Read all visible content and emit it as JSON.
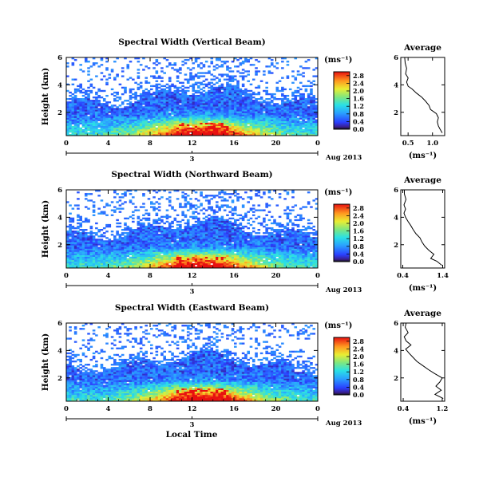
{
  "figure": {
    "xlabel": "Local Time",
    "time_ticks": [
      "0",
      "4",
      "8",
      "12",
      "16",
      "20",
      "0"
    ],
    "day_label": "3",
    "date_label": "Aug 2013",
    "height_ticks": [
      "2",
      "4",
      "6"
    ],
    "ylabel": "Height (km)",
    "unit": "(ms⁻¹)"
  },
  "chart_data": [
    {
      "type": "heatmap",
      "title": "Spectral Width (Vertical Beam)",
      "xlim": [
        0,
        24
      ],
      "ylim": [
        0.3,
        6
      ],
      "colorbar_ticks": [
        "0.0",
        "0.4",
        "0.8",
        "1.2",
        "1.6",
        "2.0",
        "2.4",
        "2.8"
      ],
      "colorbar_range": [
        0,
        3
      ],
      "average_profile": {
        "title": "Average",
        "xlabel": "(ms⁻¹)",
        "xlim": [
          0.35,
          1.25
        ],
        "xticks": [
          "0.5",
          "1.0"
        ],
        "height": [
          0.5,
          0.8,
          1.0,
          1.3,
          1.6,
          1.9,
          2.2,
          2.5,
          2.8,
          3.1,
          3.4,
          3.7,
          3.9,
          4.2,
          4.5,
          4.8,
          5.2,
          5.6,
          6.0
        ],
        "value": [
          1.2,
          1.15,
          1.12,
          1.1,
          1.12,
          1.08,
          0.96,
          0.93,
          0.86,
          0.78,
          0.67,
          0.58,
          0.5,
          0.47,
          0.5,
          0.45,
          0.47,
          0.44,
          0.43
        ]
      }
    },
    {
      "type": "heatmap",
      "title": "Spectral Width (Northward Beam)",
      "xlim": [
        0,
        24
      ],
      "ylim": [
        0.3,
        6
      ],
      "colorbar_ticks": [
        "0.0",
        "0.4",
        "0.8",
        "1.2",
        "1.6",
        "2.0",
        "2.4",
        "2.8"
      ],
      "colorbar_range": [
        0,
        3
      ],
      "average_profile": {
        "title": "Average",
        "xlabel": "(ms⁻¹)",
        "xlim": [
          0.35,
          1.45
        ],
        "xticks": [
          "0.4",
          "1.4"
        ],
        "height": [
          0.5,
          0.8,
          1.0,
          1.3,
          1.6,
          1.9,
          2.2,
          2.5,
          2.8,
          3.1,
          3.4,
          3.7,
          4.0,
          4.3,
          4.6,
          4.9,
          5.3,
          5.7,
          6.0
        ],
        "value": [
          1.38,
          1.25,
          1.1,
          1.18,
          1.05,
          0.95,
          0.88,
          0.83,
          0.73,
          0.66,
          0.6,
          0.53,
          0.47,
          0.43,
          0.47,
          0.43,
          0.48,
          0.44,
          0.44
        ]
      }
    },
    {
      "type": "heatmap",
      "title": "Spectral Width (Eastward Beam)",
      "xlim": [
        0,
        24
      ],
      "ylim": [
        0.3,
        6
      ],
      "colorbar_ticks": [
        "0.0",
        "0.4",
        "0.8",
        "1.2",
        "1.6",
        "2.0",
        "2.4",
        "2.8"
      ],
      "colorbar_range": [
        0,
        3
      ],
      "average_profile": {
        "title": "Average",
        "xlabel": "(ms⁻¹)",
        "xlim": [
          0.35,
          1.25
        ],
        "xticks": [
          "0.4",
          "1.2"
        ],
        "height": [
          0.5,
          0.8,
          1.1,
          1.4,
          1.7,
          2.0,
          2.3,
          2.6,
          2.9,
          3.2,
          3.5,
          3.8,
          4.1,
          4.4,
          4.7,
          5.0,
          5.3,
          5.7,
          6.0
        ],
        "value": [
          1.22,
          1.05,
          1.18,
          1.07,
          1.15,
          1.2,
          1.05,
          0.92,
          0.8,
          0.68,
          0.6,
          0.52,
          0.45,
          0.56,
          0.46,
          0.42,
          0.5,
          0.44,
          0.46
        ]
      }
    }
  ]
}
